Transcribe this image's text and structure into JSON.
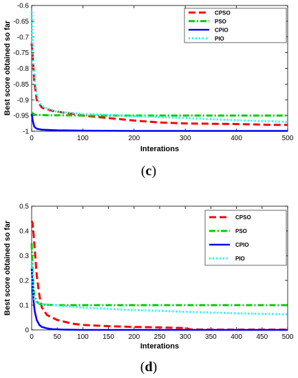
{
  "chart_data": [
    {
      "type": "line",
      "panel": [
        "(",
        "c",
        ")"
      ],
      "xlabel": "Interations",
      "ylabel": "Best score obtained so far",
      "xlim": [
        0,
        500
      ],
      "ylim": [
        -1,
        -0.6
      ],
      "xticks": [
        "0",
        "100",
        "200",
        "300",
        "400",
        "500"
      ],
      "xtick_values": [
        0,
        100,
        200,
        300,
        400,
        500
      ],
      "yticks": [
        "-0.6",
        "-0.65",
        "-0.7",
        "-0.75",
        "-0.8",
        "-0.85",
        "-0.9",
        "-0.95",
        "-1"
      ],
      "ytick_values": [
        -0.6,
        -0.65,
        -0.7,
        -0.75,
        -0.8,
        -0.85,
        -0.9,
        -0.95,
        -1.0
      ],
      "grid": false,
      "legend_position": "top-right",
      "series": [
        {
          "name": "CPSO",
          "color": "#ff0000",
          "dash": "dashed",
          "x": [
            0,
            2,
            5,
            10,
            20,
            40,
            60,
            100,
            150,
            200,
            250,
            300,
            400,
            480,
            500
          ],
          "y": [
            -0.72,
            -0.76,
            -0.84,
            -0.9,
            -0.925,
            -0.935,
            -0.94,
            -0.95,
            -0.958,
            -0.966,
            -0.972,
            -0.975,
            -0.977,
            -0.98,
            -0.98
          ]
        },
        {
          "name": "PSO",
          "color": "#00cc00",
          "dash": "dashdot",
          "x": [
            0,
            3,
            8,
            15,
            30,
            50,
            100,
            200,
            300,
            400,
            500
          ],
          "y": [
            -0.94,
            -0.945,
            -0.948,
            -0.948,
            -0.949,
            -0.949,
            -0.95,
            -0.95,
            -0.95,
            -0.95,
            -0.95
          ]
        },
        {
          "name": "CPIO",
          "color": "#0000ff",
          "dash": "solid",
          "x": [
            0,
            2,
            5,
            10,
            20,
            50,
            100,
            200,
            300,
            400,
            500
          ],
          "y": [
            -0.945,
            -0.965,
            -0.985,
            -0.992,
            -0.995,
            -0.997,
            -0.998,
            -0.999,
            -0.999,
            -0.999,
            -0.999
          ]
        },
        {
          "name": "PIO",
          "color": "#00ffff",
          "dash": "dotted",
          "x": [
            0,
            1,
            2,
            4,
            7,
            10,
            15,
            25,
            50,
            100,
            150,
            200,
            300,
            400,
            500
          ],
          "y": [
            -0.62,
            -0.68,
            -0.74,
            -0.8,
            -0.85,
            -0.885,
            -0.91,
            -0.925,
            -0.938,
            -0.945,
            -0.948,
            -0.952,
            -0.958,
            -0.965,
            -0.97
          ]
        }
      ]
    },
    {
      "type": "line",
      "panel": [
        "(",
        "d",
        ")"
      ],
      "xlabel": "Interations",
      "ylabel": "Best score obtained so far",
      "xlim": [
        0,
        500
      ],
      "ylim": [
        0,
        0.5
      ],
      "xticks": [
        "0",
        "50",
        "100",
        "150",
        "200",
        "250",
        "300",
        "350",
        "400",
        "450",
        "500"
      ],
      "xtick_values": [
        0,
        50,
        100,
        150,
        200,
        250,
        300,
        350,
        400,
        450,
        500
      ],
      "yticks": [
        "0",
        "0.1",
        "0.2",
        "0.3",
        "0.4",
        "0.5"
      ],
      "ytick_values": [
        0,
        0.1,
        0.2,
        0.3,
        0.4,
        0.5
      ],
      "grid": false,
      "legend_position": "top-right",
      "series": [
        {
          "name": "CPSO",
          "color": "#ff0000",
          "dash": "dashed",
          "x": [
            0,
            2,
            4,
            7,
            10,
            15,
            20,
            30,
            50,
            80,
            100,
            150,
            200,
            250,
            290,
            300,
            310,
            350,
            400,
            500
          ],
          "y": [
            0.44,
            0.43,
            0.38,
            0.3,
            0.22,
            0.14,
            0.09,
            0.06,
            0.04,
            0.025,
            0.02,
            0.015,
            0.012,
            0.01,
            0.008,
            0.008,
            0.002,
            0.001,
            0.001,
            0.001
          ]
        },
        {
          "name": "PSO",
          "color": "#00cc00",
          "dash": "dashdot",
          "x": [
            0,
            2,
            5,
            10,
            15,
            25,
            50,
            100,
            200,
            300,
            400,
            500
          ],
          "y": [
            0.35,
            0.22,
            0.14,
            0.115,
            0.105,
            0.102,
            0.1,
            0.1,
            0.1,
            0.1,
            0.1,
            0.1
          ]
        },
        {
          "name": "CPIO",
          "color": "#0000ff",
          "dash": "solid",
          "x": [
            0,
            2,
            4,
            6,
            10,
            15,
            20,
            30,
            40,
            60,
            80,
            100,
            200,
            300,
            400,
            500
          ],
          "y": [
            0.25,
            0.17,
            0.11,
            0.075,
            0.04,
            0.02,
            0.012,
            0.006,
            0.003,
            0.001,
            0.0005,
            0.0,
            0.0,
            0.0,
            0.0,
            0.0
          ]
        },
        {
          "name": "PIO",
          "color": "#00ffff",
          "dash": "dotted",
          "x": [
            0,
            2,
            5,
            10,
            20,
            40,
            70,
            100,
            150,
            200,
            250,
            300,
            350,
            400,
            450,
            500
          ],
          "y": [
            0.28,
            0.18,
            0.125,
            0.11,
            0.105,
            0.1,
            0.095,
            0.09,
            0.085,
            0.08,
            0.077,
            0.073,
            0.07,
            0.067,
            0.065,
            0.063
          ]
        }
      ]
    }
  ]
}
